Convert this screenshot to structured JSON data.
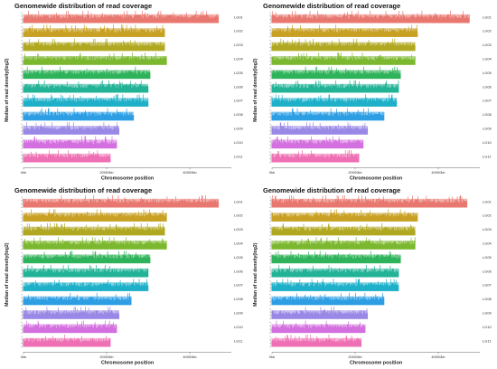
{
  "chart_data": [
    {
      "type": "bar",
      "title": "Genomewide distribution of read coverage",
      "xlabel": "Chromosome position",
      "ylabel": "Median of read density(log2)",
      "x_ticks": [
        "0kb",
        "20000kb",
        "40000kb"
      ],
      "xlim": [
        0,
        50000
      ],
      "grid": false,
      "series": [
        {
          "name": "LG01",
          "length_kb": 47000,
          "color": "#e8776f",
          "median_log2": 6
        },
        {
          "name": "LG02",
          "length_kb": 34000,
          "color": "#c8a023",
          "median_log2": 6
        },
        {
          "name": "LG03",
          "length_kb": 34000,
          "color": "#b0a821",
          "median_log2": 6
        },
        {
          "name": "LG04",
          "length_kb": 34500,
          "color": "#7cb82f",
          "median_log2": 6
        },
        {
          "name": "LG05",
          "length_kb": 30500,
          "color": "#2fb35a",
          "median_log2": 6
        },
        {
          "name": "LG06",
          "length_kb": 30000,
          "color": "#22b397",
          "median_log2": 6
        },
        {
          "name": "LG07",
          "length_kb": 30000,
          "color": "#1fb0c9",
          "median_log2": 6
        },
        {
          "name": "LG08",
          "length_kb": 26500,
          "color": "#2d9ee3",
          "median_log2": 6
        },
        {
          "name": "LG09",
          "length_kb": 23000,
          "color": "#9a88e6",
          "median_log2": 6
        },
        {
          "name": "LG10",
          "length_kb": 22500,
          "color": "#d36fde",
          "median_log2": 6
        },
        {
          "name": "LG11",
          "length_kb": 21000,
          "color": "#ee6fb3",
          "median_log2": 6
        }
      ]
    },
    {
      "type": "bar",
      "title": "Genomewide distribution of read coverage",
      "xlabel": "Chromosome position",
      "ylabel": "Median of read density(log2)",
      "x_ticks": [
        "0kb",
        "20000kb",
        "40000kb"
      ],
      "xlim": [
        0,
        50000
      ],
      "grid": false,
      "series": [
        {
          "name": "LG01",
          "length_kb": 47500,
          "color": "#e8776f",
          "median_log2": 6
        },
        {
          "name": "LG02",
          "length_kb": 35000,
          "color": "#c8a023",
          "median_log2": 6
        },
        {
          "name": "LG03",
          "length_kb": 34500,
          "color": "#b0a821",
          "median_log2": 6
        },
        {
          "name": "LG04",
          "length_kb": 34500,
          "color": "#7cb82f",
          "median_log2": 6
        },
        {
          "name": "LG05",
          "length_kb": 31000,
          "color": "#2fb35a",
          "median_log2": 6
        },
        {
          "name": "LG06",
          "length_kb": 30500,
          "color": "#22b397",
          "median_log2": 6
        },
        {
          "name": "LG07",
          "length_kb": 30000,
          "color": "#1fb0c9",
          "median_log2": 6
        },
        {
          "name": "LG08",
          "length_kb": 27000,
          "color": "#2d9ee3",
          "median_log2": 6
        },
        {
          "name": "LG09",
          "length_kb": 23000,
          "color": "#9a88e6",
          "median_log2": 6
        },
        {
          "name": "LG10",
          "length_kb": 22000,
          "color": "#d36fde",
          "median_log2": 6
        },
        {
          "name": "LG11",
          "length_kb": 21000,
          "color": "#ee6fb3",
          "median_log2": 6
        }
      ]
    },
    {
      "type": "bar",
      "title": "Genomewide distribution of read coverage",
      "xlabel": "Chromosome position",
      "ylabel": "Median of read density(log2)",
      "x_ticks": [
        "0kb",
        "20000kb",
        "40000kb"
      ],
      "xlim": [
        0,
        50000
      ],
      "grid": false,
      "series": [
        {
          "name": "LG01",
          "length_kb": 47000,
          "color": "#e8776f",
          "median_log2": 6
        },
        {
          "name": "LG02",
          "length_kb": 34500,
          "color": "#c8a023",
          "median_log2": 6
        },
        {
          "name": "LG03",
          "length_kb": 34000,
          "color": "#b0a821",
          "median_log2": 6
        },
        {
          "name": "LG04",
          "length_kb": 34500,
          "color": "#7cb82f",
          "median_log2": 6
        },
        {
          "name": "LG05",
          "length_kb": 30500,
          "color": "#2fb35a",
          "median_log2": 6
        },
        {
          "name": "LG06",
          "length_kb": 30000,
          "color": "#22b397",
          "median_log2": 6
        },
        {
          "name": "LG07",
          "length_kb": 30000,
          "color": "#1fb0c9",
          "median_log2": 6
        },
        {
          "name": "LG08",
          "length_kb": 26000,
          "color": "#2d9ee3",
          "median_log2": 6
        },
        {
          "name": "LG09",
          "length_kb": 23000,
          "color": "#9a88e6",
          "median_log2": 6
        },
        {
          "name": "LG10",
          "length_kb": 22500,
          "color": "#d36fde",
          "median_log2": 6
        },
        {
          "name": "LG11",
          "length_kb": 21000,
          "color": "#ee6fb3",
          "median_log2": 6
        }
      ]
    },
    {
      "type": "bar",
      "title": "Genomewide distribution of read coverage",
      "xlabel": "Chromosome position",
      "ylabel": "Median of read density(log2)",
      "x_ticks": [
        "0kb",
        "20000kb",
        "40000kb"
      ],
      "xlim": [
        0,
        50000
      ],
      "grid": false,
      "series": [
        {
          "name": "LG01",
          "length_kb": 47000,
          "color": "#e8776f",
          "median_log2": 6
        },
        {
          "name": "LG02",
          "length_kb": 35000,
          "color": "#c8a023",
          "median_log2": 6
        },
        {
          "name": "LG03",
          "length_kb": 34500,
          "color": "#b0a821",
          "median_log2": 6
        },
        {
          "name": "LG04",
          "length_kb": 34500,
          "color": "#7cb82f",
          "median_log2": 6
        },
        {
          "name": "LG05",
          "length_kb": 31000,
          "color": "#2fb35a",
          "median_log2": 6
        },
        {
          "name": "LG06",
          "length_kb": 30500,
          "color": "#22b397",
          "median_log2": 6
        },
        {
          "name": "LG07",
          "length_kb": 30500,
          "color": "#1fb0c9",
          "median_log2": 6
        },
        {
          "name": "LG08",
          "length_kb": 27000,
          "color": "#2d9ee3",
          "median_log2": 6
        },
        {
          "name": "LG09",
          "length_kb": 23000,
          "color": "#9a88e6",
          "median_log2": 6
        },
        {
          "name": "LG10",
          "length_kb": 22500,
          "color": "#d36fde",
          "median_log2": 6
        },
        {
          "name": "LG11",
          "length_kb": 21500,
          "color": "#ee6fb3",
          "median_log2": 6
        }
      ]
    }
  ]
}
